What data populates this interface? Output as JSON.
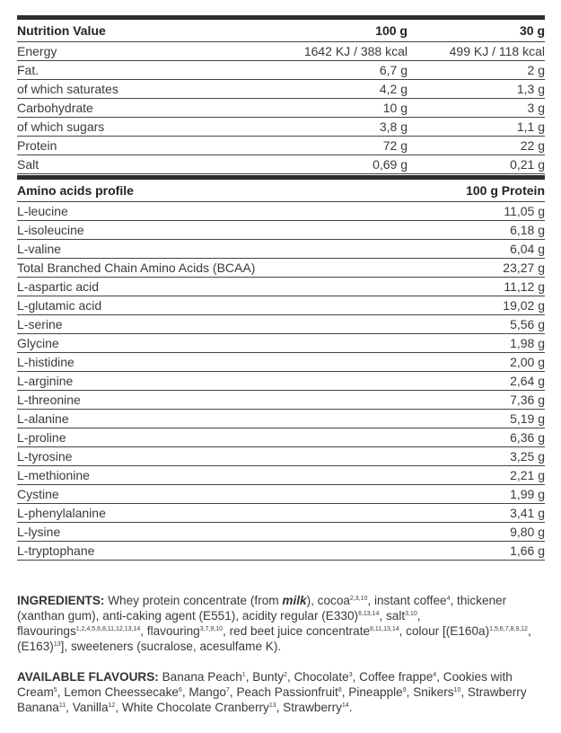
{
  "nutrition": {
    "headers": [
      "Nutrition Value",
      "100 g",
      "30 g"
    ],
    "rows": [
      [
        "Energy",
        "1642 KJ / 388 kcal",
        "499 KJ / 118 kcal"
      ],
      [
        "Fat.",
        "6,7 g",
        "2 g"
      ],
      [
        "of which saturates",
        "4,2 g",
        "1,3 g"
      ],
      [
        "Carbohydrate",
        "10 g",
        "3 g"
      ],
      [
        "of which sugars",
        "3,8 g",
        "1,1 g"
      ],
      [
        "Protein",
        "72 g",
        "22 g"
      ],
      [
        "Salt",
        "0,69 g",
        "0,21 g"
      ]
    ]
  },
  "amino": {
    "headers": [
      "Amino acids profile",
      "100 g Protein"
    ],
    "rows": [
      [
        "L-leucine",
        "11,05 g"
      ],
      [
        "L-isoleucine",
        "6,18 g"
      ],
      [
        "L-valine",
        "6,04 g"
      ],
      [
        "Total Branched Chain Amino Acids (BCAA)",
        "23,27 g"
      ],
      [
        "L-aspartic acid",
        "11,12 g"
      ],
      [
        "L-glutamic acid",
        "19,02 g"
      ],
      [
        "L-serine",
        "5,56 g"
      ],
      [
        "Glycine",
        "1,98 g"
      ],
      [
        "L-histidine",
        "2,00 g"
      ],
      [
        "L-arginine",
        "2,64 g"
      ],
      [
        "L-threonine",
        "7,36 g"
      ],
      [
        "L-alanine",
        "5,19 g"
      ],
      [
        "L-proline",
        "6,36 g"
      ],
      [
        "L-tyrosine",
        "3,25 g"
      ],
      [
        "L-methionine",
        "2,21 g"
      ],
      [
        "Cystine",
        "1,99 g"
      ],
      [
        "L-phenylalanine",
        "3,41 g"
      ],
      [
        "L-lysine",
        "9,80 g"
      ],
      [
        "L-tryptophane",
        "1,66 g"
      ]
    ]
  },
  "ingredients": {
    "label": "INGREDIENTS:",
    "parts": [
      {
        "t": " Whey protein concentrate (from "
      },
      {
        "t": "milk",
        "style": "bold-italic"
      },
      {
        "t": "), cocoa"
      },
      {
        "t": "2,3,10",
        "style": "sup"
      },
      {
        "t": ", instant coffee"
      },
      {
        "t": "4",
        "style": "sup"
      },
      {
        "t": ", thickener (xanthan gum), anti-caking agent (E551), acidity regular (E330)"
      },
      {
        "t": "6,13,14",
        "style": "sup"
      },
      {
        "t": ", salt"
      },
      {
        "t": "3,10",
        "style": "sup"
      },
      {
        "t": ", flavourings"
      },
      {
        "t": "1,2,4,5,6,8,11,12,13,14",
        "style": "sup"
      },
      {
        "t": ", flavouring"
      },
      {
        "t": "3,7,9,10",
        "style": "sup"
      },
      {
        "t": ", red beet juice concentrate"
      },
      {
        "t": "8,11,13,14",
        "style": "sup"
      },
      {
        "t": ", colour [(E160a)"
      },
      {
        "t": "1,5,6,7,8,9,12",
        "style": "sup"
      },
      {
        "t": ", (E163)"
      },
      {
        "t": "13",
        "style": "sup"
      },
      {
        "t": "], sweeteners (sucralose, acesulfame K)."
      }
    ]
  },
  "flavours": {
    "label": "AVAILABLE FLAVOURS:",
    "parts": [
      {
        "t": " Banana Peach"
      },
      {
        "t": "1",
        "style": "sup"
      },
      {
        "t": ", Bunty"
      },
      {
        "t": "2",
        "style": "sup"
      },
      {
        "t": ", Chocolate"
      },
      {
        "t": "3",
        "style": "sup"
      },
      {
        "t": ", Coffee frappe"
      },
      {
        "t": "4",
        "style": "sup"
      },
      {
        "t": ", Cookies with Cream"
      },
      {
        "t": "5",
        "style": "sup"
      },
      {
        "t": ", Lemon Cheessecake"
      },
      {
        "t": "6",
        "style": "sup"
      },
      {
        "t": ", Mango"
      },
      {
        "t": "7",
        "style": "sup"
      },
      {
        "t": ", Peach Passionfruit"
      },
      {
        "t": "8",
        "style": "sup"
      },
      {
        "t": ", Pineapple"
      },
      {
        "t": "9",
        "style": "sup"
      },
      {
        "t": ", Snikers"
      },
      {
        "t": "10",
        "style": "sup"
      },
      {
        "t": ", Strawberry Banana"
      },
      {
        "t": "11",
        "style": "sup"
      },
      {
        "t": ", Vanilla"
      },
      {
        "t": "12",
        "style": "sup"
      },
      {
        "t": ", White Chocolate Cranberry"
      },
      {
        "t": "13",
        "style": "sup"
      },
      {
        "t": ", Strawberry"
      },
      {
        "t": "14",
        "style": "sup"
      },
      {
        "t": "."
      }
    ]
  }
}
